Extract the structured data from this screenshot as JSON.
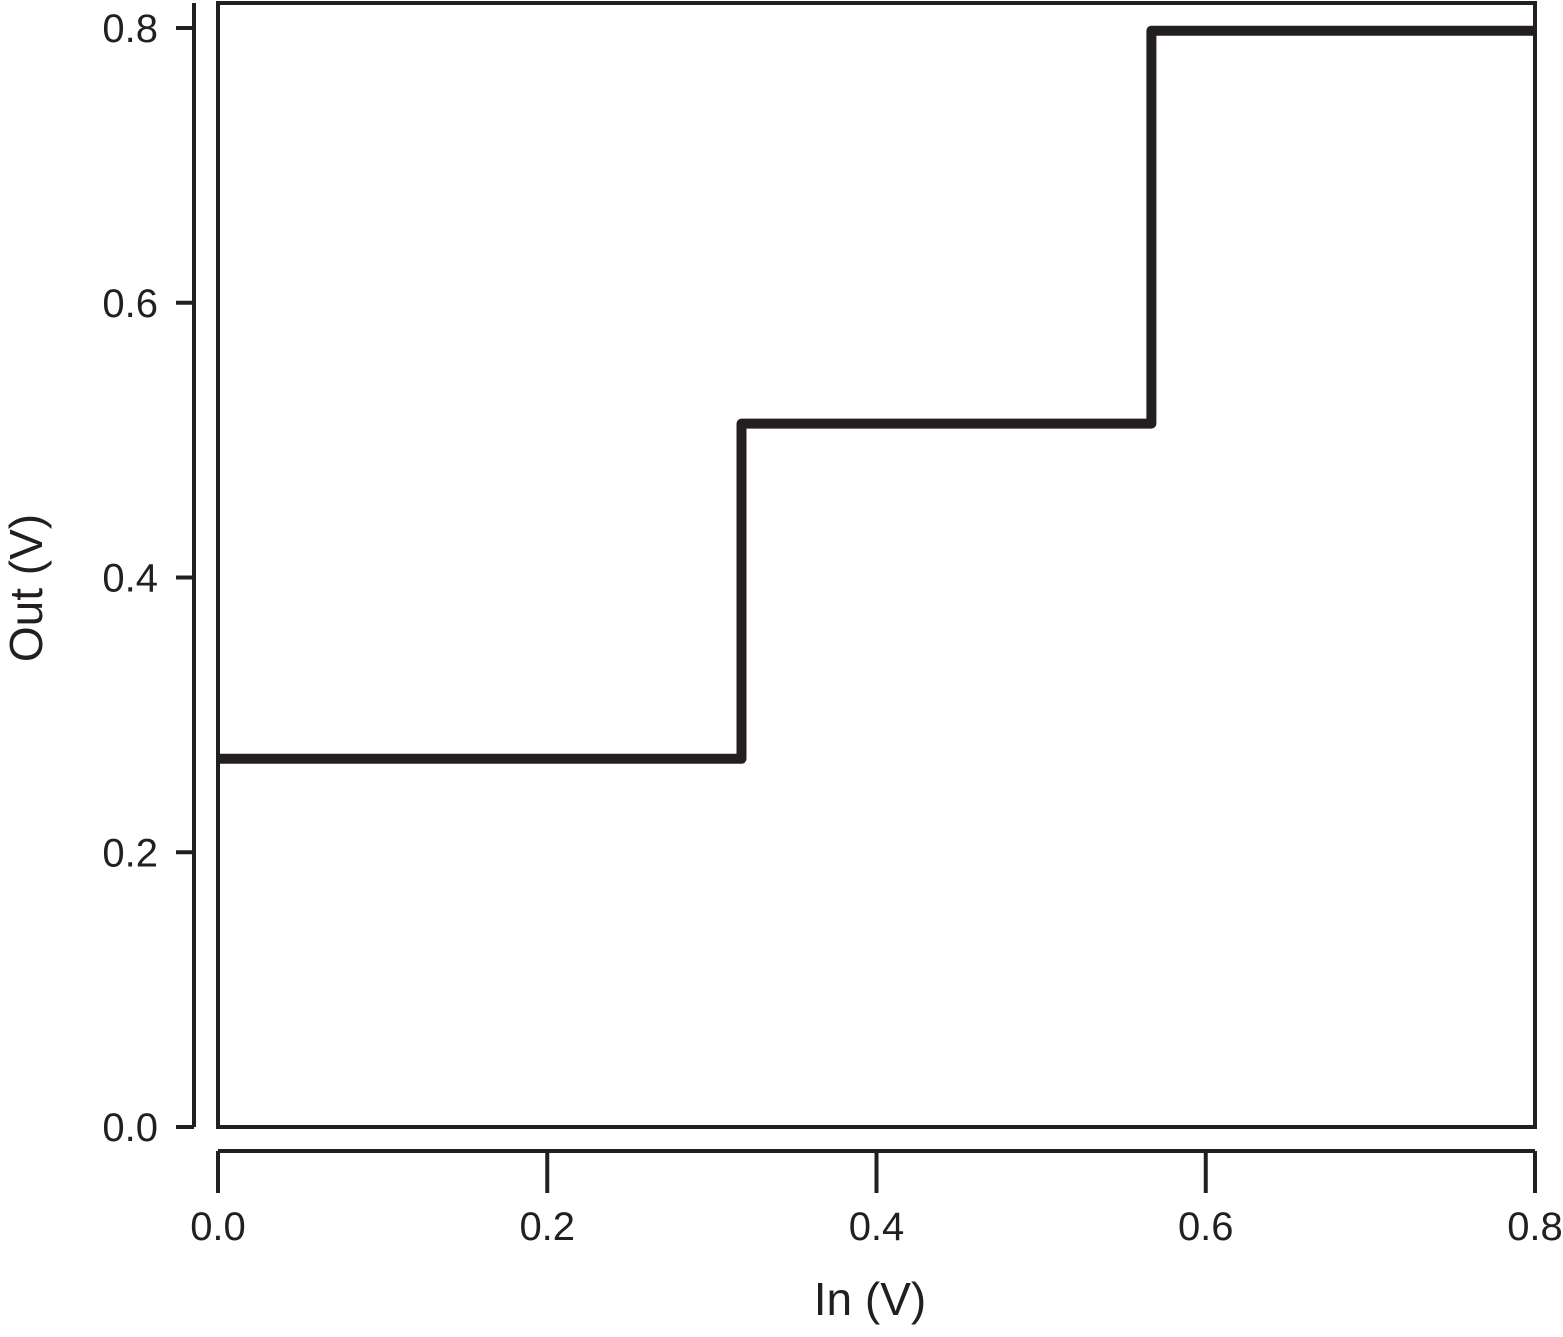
{
  "chart_data": {
    "type": "line",
    "xlabel": "In (V)",
    "ylabel": "Out (V)",
    "xlim": [
      0.0,
      0.8
    ],
    "ylim": [
      0.0,
      0.8
    ],
    "x_ticks": [
      "0.0",
      "0.2",
      "0.4",
      "0.6",
      "0.8"
    ],
    "y_ticks": [
      "0.0",
      "0.2",
      "0.4",
      "0.6",
      "0.8"
    ],
    "grid": false,
    "series": [
      {
        "step": true,
        "x": [
          0.0,
          0.318,
          0.318,
          0.567,
          0.567,
          0.8
        ],
        "y": [
          0.268,
          0.268,
          0.512,
          0.512,
          0.798,
          0.798
        ]
      }
    ],
    "line_color": "#231f20"
  }
}
